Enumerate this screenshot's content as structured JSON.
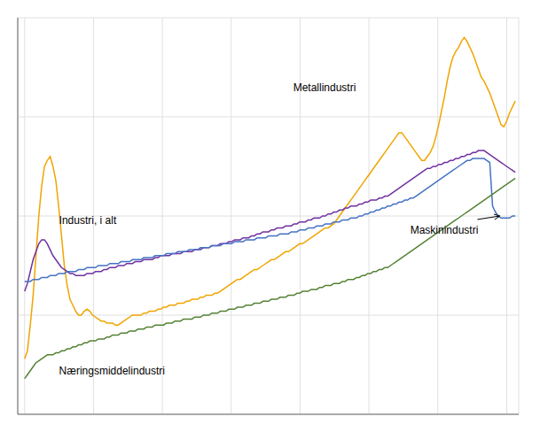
{
  "chart_data": {
    "type": "line",
    "x": [
      2000,
      2000.0824,
      2000.1647,
      2000.2471,
      2000.3295,
      2000.4118,
      2000.4942,
      2000.5766,
      2000.659,
      2000.7413,
      2000.8237,
      2000.9061,
      2000.9884,
      2001.0708,
      2001.1532,
      2001.2355,
      2001.3179,
      2001.4003,
      2001.4827,
      2001.565,
      2001.6474,
      2001.7298,
      2001.8121,
      2001.8945,
      2001.9769,
      2002.0592,
      2002.1416,
      2002.224,
      2002.3064,
      2002.3887,
      2002.4711,
      2002.5535,
      2002.6358,
      2002.7182,
      2002.8006,
      2002.8829,
      2002.9653,
      2003.0477,
      2003.1301,
      2003.2124,
      2003.2948,
      2003.3772,
      2003.4595,
      2003.5419,
      2003.6243,
      2003.7066,
      2003.789,
      2003.8714,
      2003.9538,
      2004.0361,
      2004.1185,
      2004.2009,
      2004.2832,
      2004.3656,
      2004.448,
      2004.5303,
      2004.6127,
      2004.6951,
      2004.7775,
      2004.8598,
      2004.9422,
      2005.0246,
      2005.1069,
      2005.1893,
      2005.2717,
      2005.354,
      2005.4364,
      2005.5188,
      2005.6012,
      2005.6835,
      2005.7659,
      2005.8483,
      2005.9306,
      2006.013,
      2006.0954,
      2006.1777,
      2006.2601,
      2006.3425,
      2006.4249,
      2006.5072,
      2006.5896,
      2006.672,
      2006.7543,
      2006.8367,
      2006.9191,
      2007.0014,
      2007.0838,
      2007.1662,
      2007.2486,
      2007.3309,
      2007.4133,
      2007.4957,
      2007.578,
      2007.6604,
      2007.7428,
      2007.8251,
      2007.9075,
      2007.9899,
      2008.0723,
      2008.1546,
      2008.237,
      2008.3194,
      2008.4017,
      2008.4841,
      2008.5665,
      2008.6488,
      2008.7312,
      2008.8136,
      2008.896,
      2008.9783,
      2009.0607,
      2009.1431,
      2009.2254,
      2009.3078,
      2009.3902,
      2009.4725,
      2009.5549,
      2009.6373,
      2009.7197,
      2009.802,
      2009.8844,
      2009.9668,
      2010.0491,
      2010.1315,
      2010.2139,
      2010.2962,
      2010.3786,
      2010.461,
      2010.5434,
      2010.6257,
      2010.7081,
      2010.7905,
      2010.8728,
      2010.9552,
      2011.0376,
      2011.1199,
      2011.2023,
      2011.2847,
      2011.3671,
      2011.4494,
      2011.5318,
      2011.6142,
      2011.6965,
      2011.7789,
      2011.8613,
      2011.9436,
      2012.026,
      2012.1084,
      2012.1908,
      2012.2731,
      2012.3555,
      2012.4379,
      2012.5202,
      2012.6026,
      2012.685,
      2012.7673,
      2012.8497,
      2012.9321,
      2013.0145,
      2013.0968,
      2013.1792,
      2013.2616,
      2013.3439,
      2013.4263,
      2013.5087,
      2013.591,
      2013.6734,
      2013.7558,
      2013.8382,
      2013.9205,
      2014.0029,
      2014.0853,
      2014.1676,
      2014.25
    ],
    "series": [
      {
        "color": "#f0a500",
        "values": [
          78,
          82,
          95,
          110,
          130,
          150,
          165,
          175,
          178,
          180,
          175,
          168,
          155,
          140,
          125,
          115,
          108,
          105,
          102,
          100,
          100,
          102,
          103,
          102,
          100,
          99,
          98,
          97,
          97,
          96,
          96,
          96,
          95,
          95,
          96,
          97,
          98,
          99,
          100,
          100,
          100,
          100,
          101,
          101,
          102,
          102,
          102,
          103,
          103,
          104,
          104,
          105,
          105,
          105,
          106,
          106,
          106,
          107,
          107,
          108,
          108,
          108,
          109,
          109,
          110,
          110,
          110,
          111,
          111,
          112,
          113,
          114,
          115,
          116,
          117,
          118,
          118,
          119,
          120,
          121,
          122,
          123,
          123,
          124,
          125,
          126,
          127,
          128,
          128,
          129,
          130,
          131,
          132,
          132,
          133,
          134,
          135,
          136,
          136,
          137,
          138,
          139,
          140,
          141,
          142,
          143,
          144,
          144,
          145,
          146,
          148,
          150,
          152,
          154,
          156,
          158,
          160,
          162,
          164,
          166,
          168,
          170,
          172,
          174,
          176,
          178,
          180,
          182,
          184,
          186,
          188,
          190,
          192,
          192,
          190,
          188,
          186,
          184,
          182,
          180,
          178,
          178,
          180,
          182,
          185,
          190,
          196,
          203,
          210,
          218,
          225,
          230,
          233,
          235,
          238,
          240,
          238,
          235,
          232,
          228,
          224,
          220,
          218,
          215,
          212,
          208,
          204,
          200,
          196,
          195,
          198,
          202,
          205,
          208
        ]
      },
      {
        "color": "#7030a0",
        "values": [
          112,
          116,
          122,
          128,
          132,
          136,
          138,
          138,
          136,
          133,
          130,
          128,
          126,
          124,
          123,
          122,
          121,
          121,
          120,
          120,
          120,
          120,
          121,
          121,
          121,
          122,
          122,
          122,
          123,
          123,
          124,
          124,
          124,
          125,
          125,
          125,
          126,
          126,
          126,
          127,
          127,
          127,
          128,
          128,
          128,
          128,
          129,
          129,
          130,
          130,
          130,
          130,
          131,
          131,
          131,
          131,
          132,
          132,
          132,
          132,
          133,
          133,
          133,
          134,
          134,
          134,
          135,
          135,
          135,
          136,
          136,
          136,
          137,
          137,
          138,
          138,
          138,
          139,
          139,
          139,
          140,
          140,
          141,
          141,
          142,
          142,
          142,
          143,
          143,
          144,
          144,
          144,
          145,
          145,
          145,
          146,
          146,
          147,
          147,
          147,
          148,
          148,
          149,
          149,
          149,
          150,
          150,
          151,
          151,
          152,
          152,
          153,
          153,
          154,
          154,
          155,
          155,
          155,
          156,
          156,
          157,
          157,
          158,
          158,
          158,
          159,
          159,
          160,
          160,
          161,
          162,
          163,
          164,
          165,
          166,
          167,
          168,
          169,
          170,
          171,
          172,
          173,
          174,
          174,
          175,
          175,
          176,
          176,
          177,
          177,
          178,
          178,
          179,
          179,
          180,
          180,
          181,
          181,
          182,
          182,
          183,
          183,
          183,
          182,
          181,
          180,
          179,
          178,
          177,
          176,
          175,
          174,
          173,
          172
        ]
      },
      {
        "color": "#4472c4",
        "values": [
          117,
          117,
          117,
          118,
          118,
          118,
          119,
          119,
          119,
          120,
          120,
          120,
          121,
          121,
          121,
          122,
          122,
          122,
          122,
          123,
          123,
          123,
          124,
          124,
          124,
          124,
          125,
          125,
          125,
          125,
          126,
          126,
          126,
          126,
          127,
          127,
          127,
          127,
          128,
          128,
          128,
          128,
          129,
          129,
          129,
          129,
          130,
          130,
          130,
          130,
          131,
          131,
          131,
          131,
          132,
          132,
          132,
          132,
          133,
          133,
          133,
          133,
          134,
          134,
          134,
          134,
          135,
          135,
          135,
          135,
          136,
          136,
          136,
          136,
          137,
          137,
          137,
          137,
          138,
          138,
          138,
          138,
          139,
          139,
          139,
          139,
          140,
          140,
          140,
          140,
          141,
          141,
          141,
          141,
          142,
          142,
          142,
          143,
          143,
          143,
          144,
          144,
          144,
          145,
          145,
          145,
          146,
          146,
          146,
          147,
          147,
          147,
          148,
          148,
          148,
          149,
          149,
          149,
          150,
          150,
          151,
          151,
          152,
          152,
          153,
          153,
          154,
          154,
          155,
          155,
          156,
          156,
          157,
          157,
          158,
          158,
          159,
          159,
          160,
          161,
          162,
          163,
          164,
          165,
          166,
          167,
          168,
          169,
          170,
          171,
          172,
          173,
          174,
          175,
          176,
          177,
          178,
          178,
          179,
          179,
          179,
          179,
          179,
          178,
          177,
          155,
          152,
          150,
          149,
          149,
          149,
          149,
          150,
          150
        ]
      },
      {
        "color": "#548235",
        "values": [
          68,
          70,
          72,
          74,
          76,
          77,
          78,
          79,
          80,
          80,
          80,
          81,
          81,
          82,
          82,
          83,
          83,
          84,
          84,
          85,
          85,
          86,
          86,
          87,
          87,
          87,
          88,
          88,
          88,
          89,
          89,
          90,
          90,
          90,
          91,
          91,
          91,
          92,
          92,
          92,
          93,
          93,
          93,
          94,
          94,
          94,
          95,
          95,
          95,
          95,
          96,
          96,
          96,
          97,
          97,
          97,
          98,
          98,
          98,
          98,
          99,
          99,
          99,
          100,
          100,
          100,
          101,
          101,
          101,
          102,
          102,
          102,
          103,
          103,
          103,
          104,
          104,
          104,
          105,
          105,
          105,
          106,
          106,
          106,
          107,
          107,
          107,
          108,
          108,
          108,
          109,
          109,
          109,
          110,
          110,
          110,
          111,
          111,
          112,
          112,
          112,
          113,
          113,
          113,
          114,
          114,
          115,
          115,
          115,
          116,
          116,
          116,
          117,
          117,
          118,
          118,
          118,
          119,
          119,
          120,
          120,
          121,
          121,
          122,
          122,
          123,
          123,
          124,
          124,
          125,
          126,
          127,
          128,
          129,
          130,
          131,
          132,
          133,
          134,
          135,
          136,
          137,
          138,
          139,
          140,
          141,
          142,
          143,
          144,
          145,
          146,
          147,
          148,
          149,
          150,
          151,
          152,
          153,
          154,
          155,
          156,
          157,
          158,
          159,
          160,
          161,
          162,
          163,
          164,
          165,
          166,
          167,
          168,
          169
        ]
      }
    ],
    "xlim": [
      1999.8,
      2014.35
    ],
    "xticks": [
      2000,
      2002,
      2004,
      2006,
      2008,
      2010,
      2012,
      2014
    ],
    "ylim": [
      50,
      250
    ],
    "yticks": [
      50,
      100,
      150,
      200,
      250
    ],
    "grid": true,
    "tick_labels": false,
    "annotations": [
      {
        "text": "Industri, i alt",
        "x": 2001.0,
        "y": 148
      },
      {
        "text": "Metallindustri",
        "x": 2007.8,
        "y": 215
      },
      {
        "text": "Næringsmiddelindustri",
        "x": 2001.0,
        "y": 72
      },
      {
        "text": "Maskinindustri",
        "x": 2011.2,
        "y": 143,
        "arrow": {
          "x": 2013.8,
          "y": 150
        }
      }
    ]
  }
}
